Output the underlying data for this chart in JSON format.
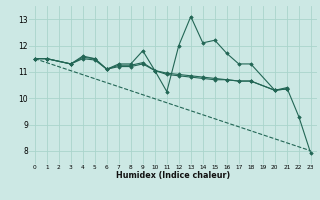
{
  "xlabel": "Humidex (Indice chaleur)",
  "ylabel": "",
  "bg_color": "#cce8e4",
  "grid_color": "#aad4cc",
  "line_color": "#226655",
  "xlim": [
    -0.5,
    23.5
  ],
  "ylim": [
    7.5,
    13.5
  ],
  "xticks": [
    0,
    1,
    2,
    3,
    4,
    5,
    6,
    7,
    8,
    9,
    10,
    11,
    12,
    13,
    14,
    15,
    16,
    17,
    18,
    19,
    20,
    21,
    22,
    23
  ],
  "yticks": [
    8,
    9,
    10,
    11,
    12,
    13
  ],
  "series": [
    {
      "x": [
        0,
        1,
        3,
        4,
        5,
        6,
        7,
        8,
        9,
        10,
        11,
        12,
        13,
        14,
        15,
        16,
        17,
        18,
        20,
        21,
        22,
        23
      ],
      "y": [
        11.5,
        11.5,
        11.3,
        11.6,
        11.5,
        11.1,
        11.3,
        11.3,
        11.8,
        11.05,
        10.25,
        12.0,
        13.1,
        12.1,
        12.2,
        11.7,
        11.3,
        11.3,
        10.3,
        10.4,
        9.3,
        7.9
      ],
      "dashed": false
    },
    {
      "x": [
        0,
        1,
        3,
        4,
        5,
        6,
        7,
        8,
        9,
        10,
        11,
        12,
        13,
        14,
        15,
        16,
        17,
        18,
        20,
        21
      ],
      "y": [
        11.5,
        11.5,
        11.3,
        11.55,
        11.5,
        11.1,
        11.25,
        11.25,
        11.35,
        11.05,
        10.9,
        10.85,
        10.8,
        10.75,
        10.7,
        10.7,
        10.65,
        10.65,
        10.3,
        10.35
      ],
      "dashed": false
    },
    {
      "x": [
        0,
        1,
        3,
        4,
        5,
        6,
        7,
        8,
        9,
        10,
        11,
        12,
        13,
        14,
        15,
        16,
        17,
        18,
        20,
        21
      ],
      "y": [
        11.5,
        11.5,
        11.3,
        11.5,
        11.45,
        11.1,
        11.2,
        11.2,
        11.3,
        11.05,
        10.95,
        10.9,
        10.85,
        10.8,
        10.75,
        10.7,
        10.65,
        10.65,
        10.3,
        10.35
      ],
      "dashed": false
    },
    {
      "x": [
        0,
        23
      ],
      "y": [
        11.5,
        8.0
      ],
      "dashed": true
    }
  ]
}
